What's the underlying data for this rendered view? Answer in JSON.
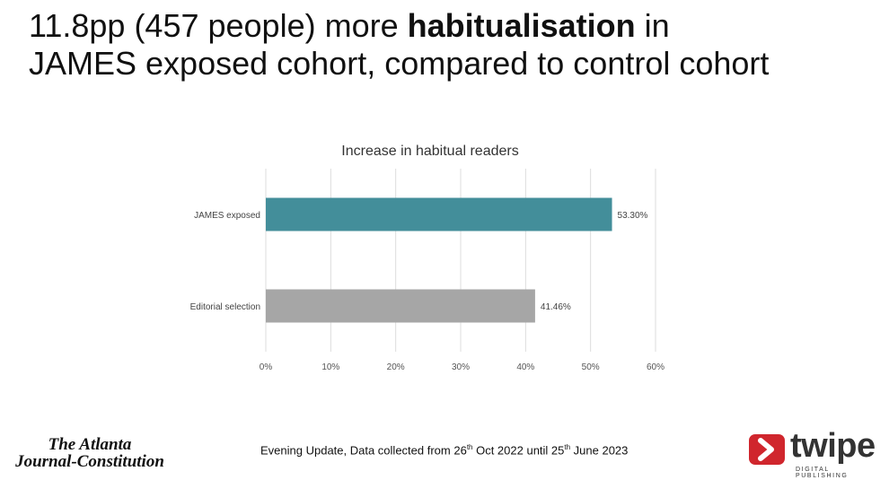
{
  "headline": {
    "part1": "11.8pp (457 people) more ",
    "bold": "habitualisation",
    "part2": " in",
    "line2": "JAMES exposed cohort, compared to control cohort"
  },
  "chart_data": {
    "type": "bar",
    "orientation": "horizontal",
    "title": "Increase in habitual readers",
    "categories": [
      "JAMES exposed",
      "Editorial selection"
    ],
    "values": [
      53.3,
      41.46
    ],
    "value_labels": [
      "53.30%",
      "41.46%"
    ],
    "colors": [
      "#438e9a",
      "#a6a6a6"
    ],
    "xlim": [
      0,
      60
    ],
    "x_ticks": [
      "0%",
      "10%",
      "20%",
      "30%",
      "40%",
      "50%",
      "60%"
    ],
    "xlabel": "",
    "ylabel": "",
    "grid": true
  },
  "footer": {
    "source_prefix": "Evening Update, Data collected from 26",
    "source_sup1": "th",
    "source_middle": " Oct 2022 until 25",
    "source_sup2": "th",
    "source_suffix": " June 2023"
  },
  "logos": {
    "ajc_line1": "The Atlanta",
    "ajc_line2": "Journal-Constitution",
    "twipe_word": "twipe",
    "twipe_tagline": "DIGITAL PUBLISHING"
  }
}
